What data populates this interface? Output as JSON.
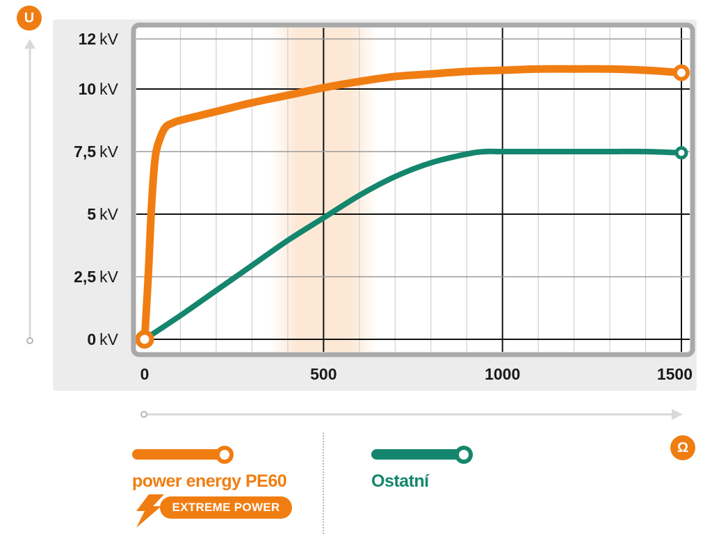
{
  "colors": {
    "orange": "#f07d12",
    "green": "#14866d",
    "panel": "#ececec",
    "frame": "#a9a9a9",
    "arrow": "#d9d9d9",
    "band": "#fde8d6"
  },
  "y_axis_badge": "U",
  "x_axis_badge": "Ω",
  "legend": {
    "primary_name": "power energy PE60",
    "primary_tag": "EXTREME POWER",
    "primary_icon": "lightning-bolt-icon",
    "secondary_name": "Ostatní"
  },
  "chart_data": {
    "type": "line",
    "x_ticks": [
      "0",
      "500",
      "1000",
      "1500"
    ],
    "y_ticks": [
      "0 kV",
      "2,5 kV",
      "5 kV",
      "7,5 kV",
      "10 kV",
      "12 kV"
    ],
    "y_tick_values": [
      0,
      2.5,
      5,
      7.5,
      10,
      12
    ],
    "xlim": [
      0,
      1500
    ],
    "ylim": [
      0,
      12
    ],
    "grid": true,
    "highlight_band_x": [
      350,
      650
    ],
    "series": [
      {
        "name": "power energy PE60",
        "color": "#f07d12",
        "x": [
          0,
          10,
          20,
          30,
          45,
          60,
          80,
          100,
          200,
          300,
          400,
          500,
          600,
          700,
          800,
          900,
          1000,
          1100,
          1200,
          1300,
          1400,
          1500
        ],
        "y": [
          0,
          2.5,
          5.5,
          7.3,
          8.1,
          8.5,
          8.65,
          8.75,
          9.1,
          9.45,
          9.75,
          10.05,
          10.3,
          10.5,
          10.6,
          10.7,
          10.75,
          10.8,
          10.8,
          10.8,
          10.75,
          10.65
        ]
      },
      {
        "name": "Ostatní",
        "color": "#14866d",
        "x": [
          0,
          100,
          200,
          300,
          400,
          500,
          600,
          700,
          800,
          900,
          950,
          1000,
          1100,
          1200,
          1300,
          1400,
          1500
        ],
        "y": [
          0,
          0.95,
          1.95,
          2.95,
          3.95,
          4.85,
          5.75,
          6.5,
          7.05,
          7.4,
          7.5,
          7.5,
          7.5,
          7.5,
          7.5,
          7.5,
          7.45
        ]
      }
    ]
  }
}
